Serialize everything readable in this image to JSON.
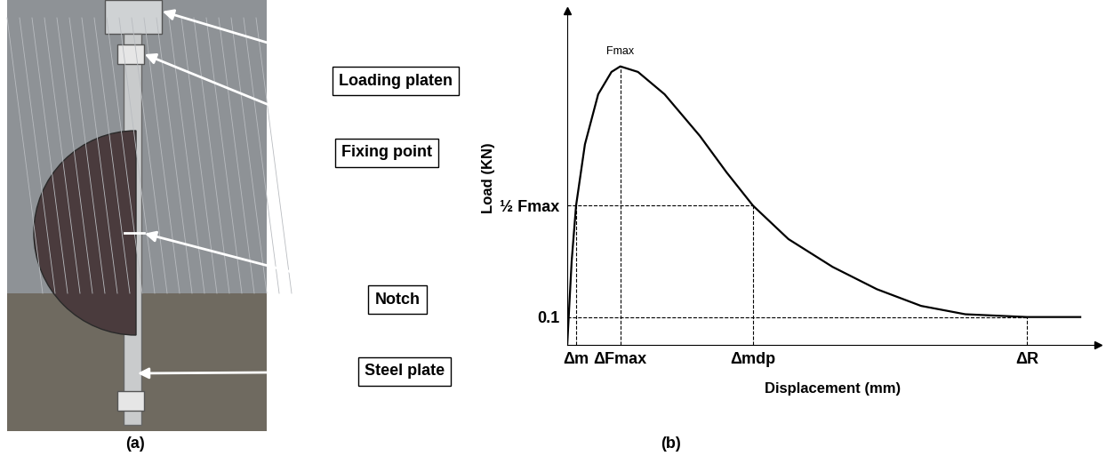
{
  "photo": {
    "labels": [
      "Loading platen",
      "Fixing point",
      "Notch",
      "Steel plate"
    ],
    "caption": "(a)"
  },
  "chart_data": {
    "type": "line",
    "caption": "(b)",
    "x_label": "Displacement (mm)",
    "y_label": "Load (KN)",
    "x": [
      0,
      0.05,
      0.1,
      0.2,
      0.35,
      0.5,
      0.6,
      0.8,
      1.1,
      1.5,
      1.8,
      2.1,
      2.5,
      3.0,
      3.5,
      4.0,
      4.5,
      5.2,
      5.8
    ],
    "values": [
      0,
      0.3,
      0.5,
      0.72,
      0.9,
      0.98,
      1.0,
      0.98,
      0.9,
      0.75,
      0.62,
      0.5,
      0.38,
      0.28,
      0.2,
      0.14,
      0.11,
      0.1,
      0.1
    ],
    "color": "#000000",
    "xlim": [
      0,
      6.0
    ],
    "ylim": [
      0,
      1.2
    ],
    "xticks": [
      {
        "value": 0.1,
        "label": "Δm"
      },
      {
        "value": 0.6,
        "label": "ΔFmax"
      },
      {
        "value": 2.1,
        "label": "Δmdp"
      },
      {
        "value": 5.2,
        "label": "ΔR"
      }
    ],
    "yticks": [
      0.1,
      {
        "value": 0.5,
        "label": "½ Fmax"
      }
    ],
    "annotations": [
      {
        "x": 0.6,
        "y": 1.0,
        "text": "Fmax"
      }
    ],
    "grid": false
  }
}
